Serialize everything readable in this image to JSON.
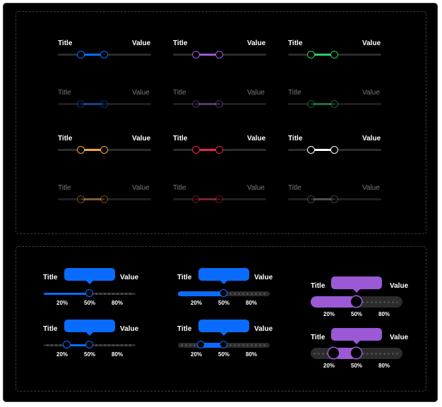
{
  "colors": {
    "blue": "#0a6cff",
    "purple": "#9b59d6",
    "green": "#2ecc5f",
    "orange": "#f5a742",
    "red": "#e8244d",
    "white": "#ffffff",
    "gray": "#8a8a8a",
    "track": "#2c2c2c"
  },
  "top_grid": {
    "title_label": "Title",
    "value_label": "Value",
    "rows": [
      {
        "state": "active",
        "sliders": [
          {
            "color": "blue",
            "low": 0.25,
            "high": 0.5
          },
          {
            "color": "purple",
            "low": 0.25,
            "high": 0.5
          },
          {
            "color": "green",
            "low": 0.25,
            "high": 0.5
          }
        ]
      },
      {
        "state": "disabled",
        "sliders": [
          {
            "color": "blue",
            "low": 0.25,
            "high": 0.5
          },
          {
            "color": "purple",
            "low": 0.25,
            "high": 0.5
          },
          {
            "color": "green",
            "low": 0.25,
            "high": 0.5
          }
        ]
      },
      {
        "state": "active",
        "sliders": [
          {
            "color": "orange",
            "low": 0.25,
            "high": 0.5
          },
          {
            "color": "red",
            "low": 0.25,
            "high": 0.5
          },
          {
            "color": "white",
            "low": 0.25,
            "high": 0.5
          }
        ]
      },
      {
        "state": "disabled",
        "sliders": [
          {
            "color": "orange",
            "low": 0.25,
            "high": 0.5
          },
          {
            "color": "red",
            "low": 0.25,
            "high": 0.5
          },
          {
            "color": "gray",
            "low": 0.25,
            "high": 0.5
          }
        ]
      }
    ]
  },
  "bottom_grid": {
    "title_label": "Title",
    "value_label": "Value",
    "ticks": [
      "20%",
      "50%",
      "80%"
    ],
    "sliders": [
      {
        "style": "thin",
        "mode": "single",
        "color": "blue",
        "low": 0.0,
        "high": 0.5
      },
      {
        "style": "medium",
        "mode": "single",
        "color": "blue",
        "low": 0.0,
        "high": 0.5
      },
      {
        "style": "thick",
        "mode": "single",
        "color": "purple",
        "low": 0.0,
        "high": 0.5
      },
      {
        "style": "thin",
        "mode": "range",
        "color": "blue",
        "low": 0.25,
        "high": 0.5
      },
      {
        "style": "medium",
        "mode": "range",
        "color": "blue",
        "low": 0.25,
        "high": 0.5
      },
      {
        "style": "thick",
        "mode": "range",
        "color": "purple",
        "low": 0.25,
        "high": 0.5
      }
    ]
  }
}
